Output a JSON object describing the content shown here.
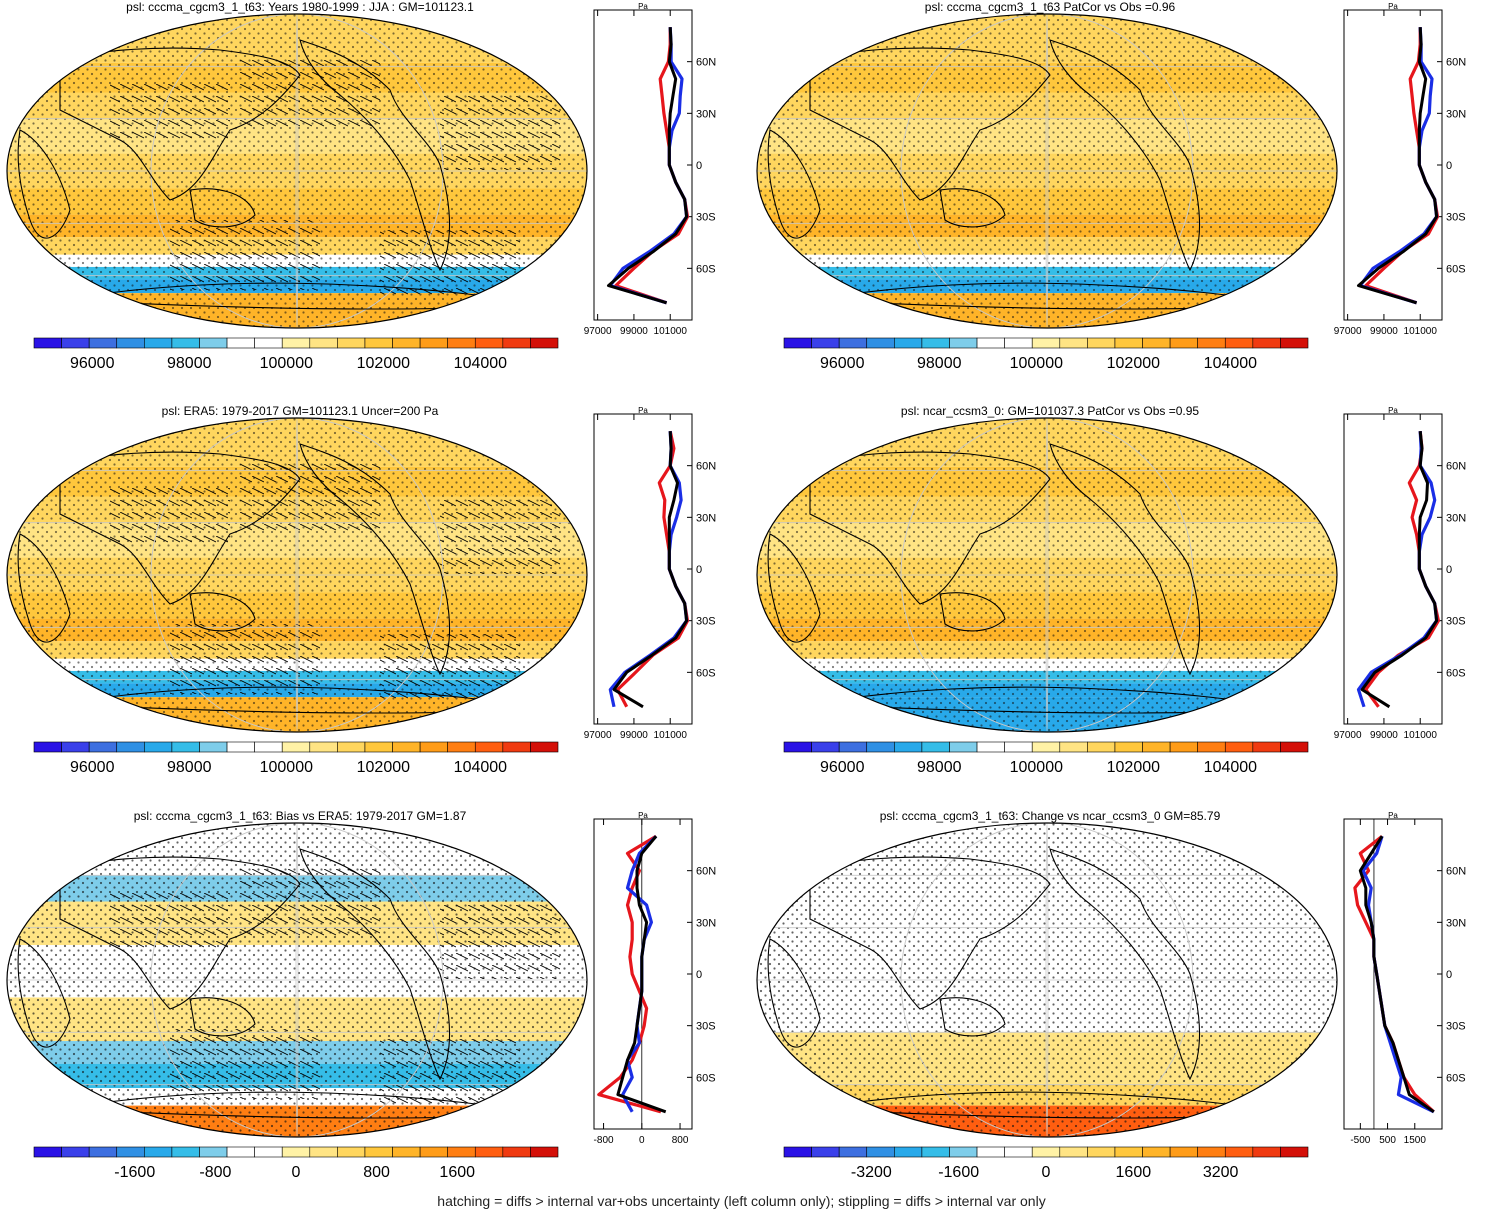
{
  "colors": {
    "abs_scale": [
      "#2a12e6",
      "#3a40ea",
      "#3d6fe0",
      "#2f90e4",
      "#28a9ea",
      "#35bde8",
      "#7ecdea",
      "#ffffff",
      "#ffffff",
      "#fff2a6",
      "#ffe484",
      "#ffd65e",
      "#ffc73c",
      "#ffb428",
      "#ff9c18",
      "#ff7e12",
      "#ff5e10",
      "#f03a10",
      "#d41008"
    ],
    "bias_scale": [
      "#2a12e6",
      "#3a40ea",
      "#3d6fe0",
      "#2f90e4",
      "#28a9ea",
      "#35bde8",
      "#7ecdea",
      "#ffffff",
      "#ffffff",
      "#fff2a6",
      "#ffe484",
      "#ffd65e",
      "#ffc73c",
      "#ffb428",
      "#ff9c18",
      "#ff7e12",
      "#ff5e10",
      "#f03a10",
      "#d41008"
    ],
    "series": {
      "model": "#000000",
      "obs1": "#1a2ee6",
      "obs2": "#e6161c"
    }
  },
  "footer": "hatching = diffs > internal var+obs uncertainty (left column only); stippling = diffs > internal var only",
  "chart_data": [
    {
      "id": "p1",
      "type": "heatmap",
      "title": "psl: cccma_cgcm3_1_t63: Years 1980-1999 : JJA : GM=101123.1",
      "colorbar_ticks": [
        "96000",
        "98000",
        "100000",
        "102000",
        "104000"
      ],
      "colorbar_range": [
        94800,
        105600
      ],
      "profile": {
        "unit": "Pa",
        "xticks": [
          "97000",
          "99000",
          "101000"
        ],
        "xrange": [
          96800,
          102200
        ],
        "yticks": [
          "60N",
          "30N",
          "0",
          "30S",
          "60S"
        ],
        "lat": [
          80,
          70,
          60,
          50,
          40,
          30,
          20,
          10,
          0,
          -10,
          -20,
          -30,
          -40,
          -50,
          -60,
          -70,
          -80
        ],
        "series": [
          {
            "key": "model",
            "values": [
              101000,
              101050,
              100950,
              101300,
              101150,
              101000,
              100950,
              100950,
              100950,
              101300,
              101800,
              101900,
              101300,
              100100,
              98700,
              97600,
              100800
            ]
          },
          {
            "key": "obs1",
            "values": [
              101000,
              101050,
              101050,
              101650,
              101550,
              101500,
              101100,
              100950,
              100950,
              101300,
              101800,
              101900,
              101200,
              99900,
              98400,
              97700,
              100800
            ]
          },
          {
            "key": "obs2",
            "values": [
              101000,
              101000,
              100900,
              100450,
              100550,
              100650,
              100800,
              100950,
              100950,
              101300,
              101800,
              101950,
              101450,
              100050,
              99000,
              98000,
              100800
            ]
          }
        ]
      }
    },
    {
      "id": "p2",
      "type": "heatmap",
      "title": "psl: cccma_cgcm3_1_t63 PatCor vs Obs =0.96",
      "colorbar_ticks": [
        "96000",
        "98000",
        "100000",
        "102000",
        "104000"
      ],
      "colorbar_range": [
        94800,
        105600
      ],
      "profile": {
        "unit": "Pa",
        "xticks": [
          "97000",
          "99000",
          "101000"
        ],
        "xrange": [
          96800,
          102200
        ],
        "yticks": [
          "60N",
          "30N",
          "0",
          "30S",
          "60S"
        ],
        "lat": [
          80,
          70,
          60,
          50,
          40,
          30,
          20,
          10,
          0,
          -10,
          -20,
          -30,
          -40,
          -50,
          -60,
          -70,
          -80
        ],
        "series": [
          {
            "key": "model",
            "values": [
              101000,
              101050,
              100950,
              101300,
              101150,
              101000,
              100950,
              100950,
              100950,
              101300,
              101800,
              101900,
              101300,
              100100,
              98700,
              97600,
              100800
            ]
          },
          {
            "key": "obs1",
            "values": [
              101000,
              101050,
              101050,
              101650,
              101550,
              101500,
              101100,
              100950,
              100950,
              101300,
              101800,
              101900,
              101200,
              99900,
              98400,
              97700,
              100800
            ]
          },
          {
            "key": "obs2",
            "values": [
              101000,
              101000,
              100900,
              100450,
              100550,
              100650,
              100800,
              100950,
              100950,
              101300,
              101800,
              101950,
              101450,
              100050,
              99000,
              98000,
              100800
            ]
          }
        ]
      }
    },
    {
      "id": "p3",
      "type": "heatmap",
      "title": "psl: ERA5: 1979-2017 GM=101123.1 Uncer=200 Pa",
      "colorbar_ticks": [
        "96000",
        "98000",
        "100000",
        "102000",
        "104000"
      ],
      "colorbar_range": [
        94800,
        105600
      ],
      "profile": {
        "unit": "Pa",
        "xticks": [
          "97000",
          "99000",
          "101000"
        ],
        "xrange": [
          96800,
          102200
        ],
        "yticks": [
          "60N",
          "30N",
          "0",
          "30S",
          "60S"
        ],
        "lat": [
          80,
          70,
          60,
          50,
          40,
          30,
          20,
          10,
          0,
          -10,
          -20,
          -30,
          -40,
          -50,
          -60,
          -70,
          -80
        ],
        "series": [
          {
            "key": "model",
            "values": [
              101000,
              101050,
              101000,
              101400,
              101200,
              100950,
              100950,
              100950,
              100950,
              101300,
              101800,
              101900,
              101300,
              100000,
              98600,
              97900,
              99500
            ]
          },
          {
            "key": "obs1",
            "values": [
              101000,
              101050,
              101000,
              101500,
              101600,
              101350,
              101050,
              100950,
              100950,
              101300,
              101800,
              101900,
              101200,
              99900,
              98500,
              97700,
              97900
            ]
          },
          {
            "key": "obs2",
            "values": [
              101000,
              101200,
              101000,
              100400,
              100700,
              100650,
              100800,
              100950,
              100950,
              101300,
              101800,
              101950,
              101450,
              100050,
              99100,
              98100,
              98600
            ]
          }
        ]
      }
    },
    {
      "id": "p4",
      "type": "heatmap",
      "title": "psl: ncar_ccsm3_0: GM=101037.3 PatCor vs Obs =0.95",
      "colorbar_ticks": [
        "96000",
        "98000",
        "100000",
        "102000",
        "104000"
      ],
      "colorbar_range": [
        94800,
        105600
      ],
      "profile": {
        "unit": "Pa",
        "xticks": [
          "97000",
          "99000",
          "101000"
        ],
        "xrange": [
          96800,
          102200
        ],
        "yticks": [
          "60N",
          "30N",
          "0",
          "30S",
          "60S"
        ],
        "lat": [
          80,
          70,
          60,
          50,
          40,
          30,
          20,
          10,
          0,
          -10,
          -20,
          -30,
          -40,
          -50,
          -60,
          -70,
          -80
        ],
        "series": [
          {
            "key": "model",
            "values": [
              101000,
              101100,
              101000,
              101400,
              101350,
              101000,
              100950,
              100950,
              100950,
              101300,
              101800,
              101900,
              101300,
              100000,
              98500,
              97800,
              99300
            ]
          },
          {
            "key": "obs1",
            "values": [
              101000,
              101050,
              101000,
              101600,
              101800,
              101550,
              101100,
              100950,
              100950,
              101300,
              101800,
              101900,
              101200,
              99900,
              98300,
              97600,
              97900
            ]
          },
          {
            "key": "obs2",
            "values": [
              101000,
              101100,
              100950,
              100400,
              100800,
              100550,
              100800,
              100950,
              100950,
              101300,
              101800,
              102000,
              101450,
              99800,
              98700,
              98000,
              98700
            ]
          }
        ]
      }
    },
    {
      "id": "p5",
      "type": "heatmap",
      "title": "psl: cccma_cgcm3_1_t63: Bias vs ERA5: 1979-2017 GM=1.87",
      "colorbar_ticks": [
        "-1600",
        "-800",
        "0",
        "800",
        "1600"
      ],
      "colorbar_range": [
        -2600,
        2600
      ],
      "profile": {
        "unit": "Pa",
        "xticks": [
          "-800",
          "0",
          "800"
        ],
        "xrange": [
          -1000,
          1050
        ],
        "yticks": [
          "60N",
          "30N",
          "0",
          "30S",
          "60S"
        ],
        "lat": [
          80,
          70,
          60,
          50,
          40,
          30,
          20,
          10,
          0,
          -10,
          -20,
          -30,
          -40,
          -50,
          -60,
          -70,
          -80
        ],
        "series": [
          {
            "key": "model",
            "values": [
              300,
              0,
              -100,
              -100,
              -50,
              100,
              50,
              0,
              0,
              0,
              -50,
              -100,
              -150,
              -300,
              -400,
              -500,
              500
            ]
          },
          {
            "key": "obs1",
            "values": [
              300,
              -50,
              -200,
              -300,
              100,
              200,
              50,
              0,
              0,
              0,
              -50,
              -100,
              -50,
              -300,
              -200,
              -400,
              -200
            ]
          },
          {
            "key": "obs2",
            "values": [
              300,
              -300,
              -50,
              -200,
              -300,
              -200,
              -200,
              -250,
              -200,
              -50,
              100,
              50,
              -50,
              -200,
              -450,
              -900,
              400
            ]
          }
        ]
      }
    },
    {
      "id": "p6",
      "type": "heatmap",
      "title": "psl: cccma_cgcm3_1_t63: Change vs ncar_ccsm3_0 GM=85.79",
      "colorbar_ticks": [
        "-3200",
        "-1600",
        "0",
        "1600",
        "3200"
      ],
      "colorbar_range": [
        -4800,
        4800
      ],
      "profile": {
        "unit": "Pa",
        "xticks": [
          "-500",
          "500",
          "1500"
        ],
        "xrange": [
          -1100,
          2500
        ],
        "yticks": [
          "60N",
          "30N",
          "0",
          "30S",
          "60S"
        ],
        "lat": [
          80,
          70,
          60,
          50,
          40,
          30,
          20,
          10,
          0,
          -10,
          -20,
          -30,
          -40,
          -50,
          -60,
          -70,
          -80
        ],
        "series": [
          {
            "key": "model",
            "values": [
              300,
              -100,
              -500,
              -300,
              -300,
              -100,
              0,
              0,
              100,
              200,
              300,
              400,
              700,
              900,
              1100,
              1300,
              2200
            ]
          },
          {
            "key": "obs1",
            "values": [
              300,
              100,
              -400,
              -100,
              -200,
              -100,
              0,
              0,
              100,
              200,
              300,
              400,
              600,
              800,
              1000,
              900,
              2200
            ]
          },
          {
            "key": "obs2",
            "values": [
              300,
              -500,
              -200,
              -700,
              -600,
              -300,
              0,
              0,
              100,
              200,
              300,
              400,
              700,
              900,
              1100,
              1500,
              2200
            ]
          }
        ]
      }
    }
  ]
}
